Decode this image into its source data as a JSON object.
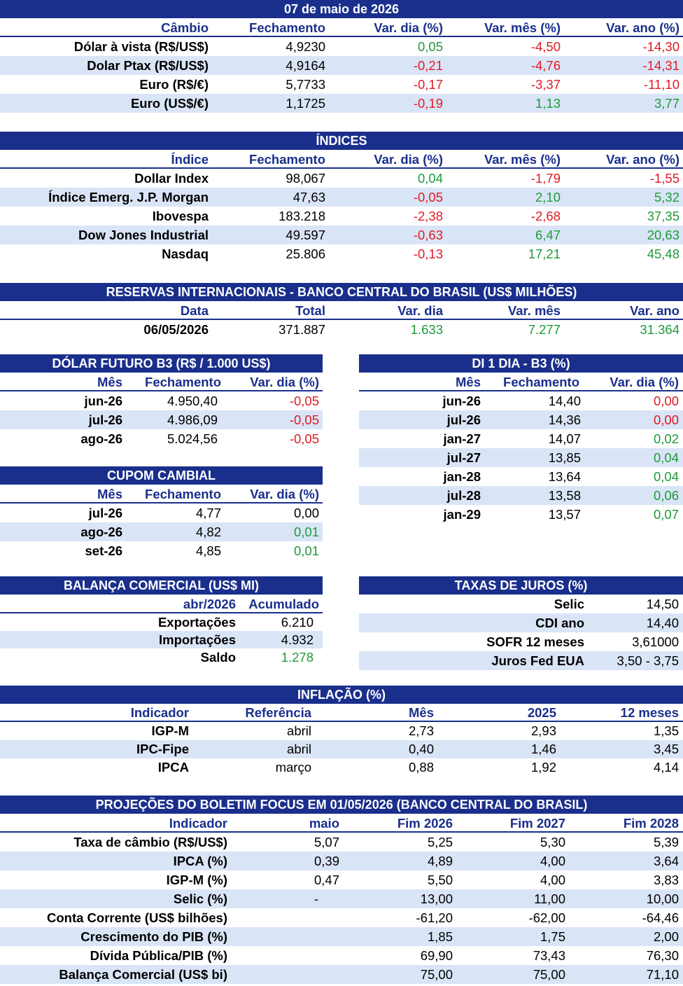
{
  "date_title": "07 de maio de 2026",
  "cambio": {
    "headers": [
      "Câmbio",
      "Fechamento",
      "Var. dia (%)",
      "Var. mês (%)",
      "Var. ano (%)"
    ],
    "rows": [
      [
        "Dólar à vista (R$/US$)",
        "4,9230",
        "0,05",
        "-4,50",
        "-14,30"
      ],
      [
        "Dolar Ptax (R$/US$)",
        "4,9164",
        "-0,21",
        "-4,76",
        "-14,31"
      ],
      [
        "Euro (R$/€)",
        "5,7733",
        "-0,17",
        "-3,37",
        "-11,10"
      ],
      [
        "Euro (US$/€)",
        "1,1725",
        "-0,19",
        "1,13",
        "3,77"
      ]
    ]
  },
  "indices": {
    "title": "ÍNDICES",
    "headers": [
      "Índice",
      "Fechamento",
      "Var. dia (%)",
      "Var. mês (%)",
      "Var. ano (%)"
    ],
    "rows": [
      [
        "Dollar Index",
        "98,067",
        "0,04",
        "-1,79",
        "-1,55"
      ],
      [
        "Índice Emerg. J.P. Morgan",
        "47,63",
        "-0,05",
        "2,10",
        "5,32"
      ],
      [
        "Ibovespa",
        "183.218",
        "-2,38",
        "-2,68",
        "37,35"
      ],
      [
        "Dow Jones Industrial",
        "49.597",
        "-0,63",
        "6,47",
        "20,63"
      ],
      [
        "Nasdaq",
        "25.806",
        "-0,13",
        "17,21",
        "45,48"
      ]
    ]
  },
  "reservas": {
    "title": "RESERVAS INTERNACIONAIS - BANCO CENTRAL DO BRASIL (US$ MILHÕES)",
    "headers": [
      "Data",
      "Total",
      "Var. dia",
      "Var. mês",
      "Var. ano"
    ],
    "row": [
      "06/05/2026",
      "371.887",
      "1.633",
      "7.277",
      "31.364"
    ]
  },
  "dolar_futuro": {
    "title": "DÓLAR FUTURO B3 (R$ / 1.000 US$)",
    "headers": [
      "Mês",
      "Fechamento",
      "Var. dia (%)"
    ],
    "rows": [
      [
        "jun-26",
        "4.950,40",
        "-0,05"
      ],
      [
        "jul-26",
        "4.986,09",
        "-0,05"
      ],
      [
        "ago-26",
        "5.024,56",
        "-0,05"
      ]
    ]
  },
  "di": {
    "title": "DI 1 DIA - B3 (%)",
    "headers": [
      "Mês",
      "Fechamento",
      "Var. dia (%)"
    ],
    "rows": [
      [
        "jun-26",
        "14,40",
        "0,00"
      ],
      [
        "jul-26",
        "14,36",
        "0,00"
      ],
      [
        "jan-27",
        "14,07",
        "0,02"
      ],
      [
        "jul-27",
        "13,85",
        "0,04"
      ],
      [
        "jan-28",
        "13,64",
        "0,04"
      ],
      [
        "jul-28",
        "13,58",
        "0,06"
      ],
      [
        "jan-29",
        "13,57",
        "0,07"
      ]
    ]
  },
  "cupom": {
    "title": "CUPOM CAMBIAL",
    "headers": [
      "Mês",
      "Fechamento",
      "Var. dia (%)"
    ],
    "rows": [
      [
        "jul-26",
        "4,77",
        "0,00"
      ],
      [
        "ago-26",
        "4,82",
        "0,01"
      ],
      [
        "set-26",
        "4,85",
        "0,01"
      ]
    ]
  },
  "balanca": {
    "title": "BALANÇA COMERCIAL (US$ MI)",
    "headers": [
      "abr/2026",
      "Acumulado"
    ],
    "rows": [
      [
        "Exportações",
        "6.210"
      ],
      [
        "Importações",
        "4.932"
      ],
      [
        "Saldo",
        "1.278"
      ]
    ]
  },
  "juros": {
    "title": "TAXAS DE JUROS (%)",
    "rows": [
      [
        "Selic",
        "14,50"
      ],
      [
        "CDI ano",
        "14,40"
      ],
      [
        "SOFR 12 meses",
        "3,61000"
      ],
      [
        "Juros Fed EUA",
        "3,50 - 3,75"
      ]
    ]
  },
  "inflacao": {
    "title": "INFLAÇÃO (%)",
    "headers": [
      "Indicador",
      "Referência",
      "Mês",
      "2025",
      "12 meses"
    ],
    "rows": [
      [
        "IGP-M",
        "abril",
        "2,73",
        "2,93",
        "1,35"
      ],
      [
        "IPC-Fipe",
        "abril",
        "0,40",
        "1,46",
        "3,45"
      ],
      [
        "IPCA",
        "março",
        "0,88",
        "1,92",
        "4,14"
      ]
    ]
  },
  "focus": {
    "title": "PROJEÇÕES DO BOLETIM FOCUS EM 01/05/2026 (BANCO CENTRAL DO BRASIL)",
    "headers": [
      "Indicador",
      "maio",
      "Fim 2026",
      "Fim 2027",
      "Fim 2028"
    ],
    "rows": [
      [
        "Taxa de câmbio (R$/US$)",
        "5,07",
        "5,25",
        "5,30",
        "5,39"
      ],
      [
        "IPCA (%)",
        "0,39",
        "4,89",
        "4,00",
        "3,64"
      ],
      [
        "IGP-M (%)",
        "0,47",
        "5,50",
        "4,00",
        "3,83"
      ],
      [
        "Selic (%)",
        "-",
        "13,00",
        "11,00",
        "10,00"
      ],
      [
        "Conta Corrente (US$ bilhões)",
        "",
        "-61,20",
        "-62,00",
        "-64,46"
      ],
      [
        "Crescimento do PIB (%)",
        "",
        "1,85",
        "1,75",
        "2,00"
      ],
      [
        "Dívida Pública/PIB (%)",
        "",
        "69,90",
        "73,43",
        "76,30"
      ],
      [
        "Balança Comercial (US$ bi)",
        "",
        "75,00",
        "75,00",
        "71,10"
      ]
    ]
  },
  "colors": {
    "header_bg": "#1a2f8c",
    "stripe": "#d9e5f6",
    "positive": "#1f9a3a",
    "negative": "#e01b24"
  }
}
